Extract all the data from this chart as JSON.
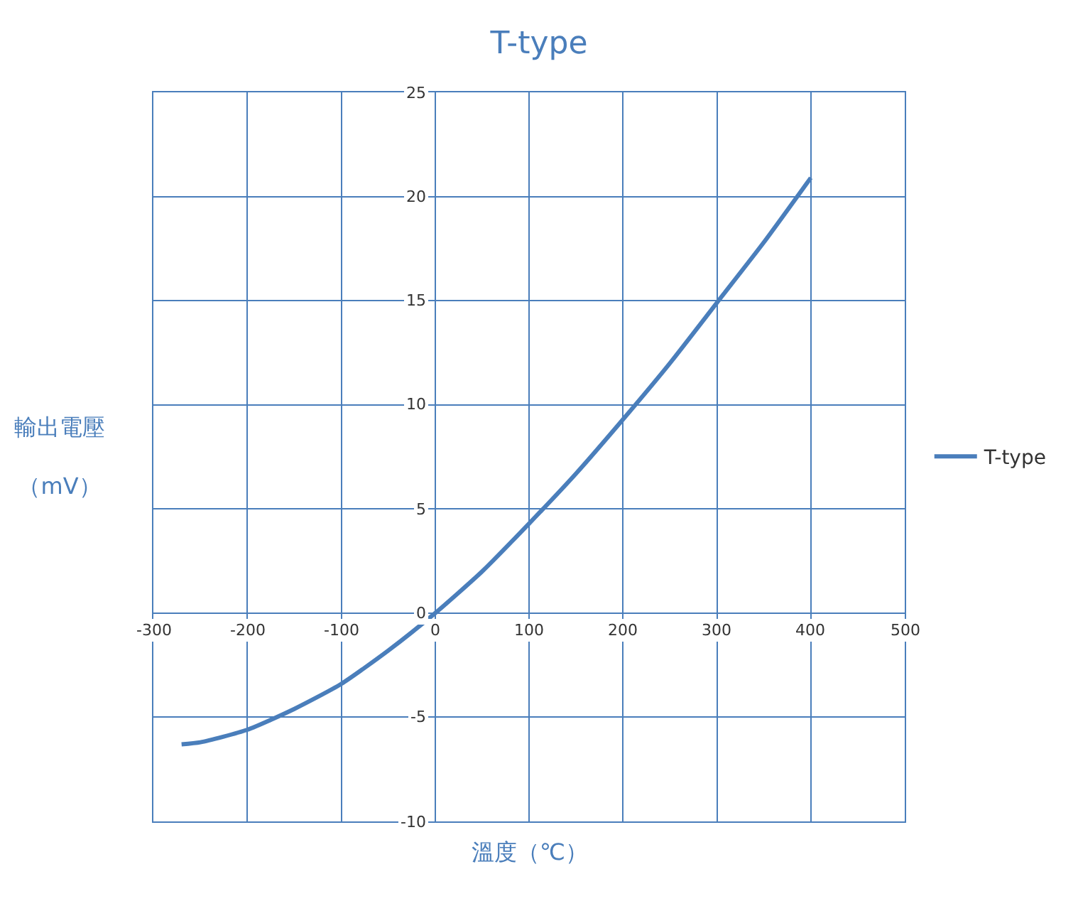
{
  "chart_data": {
    "type": "line",
    "title": "T-type",
    "xlabel": "溫度（℃）",
    "ylabel": "輸出電壓（mV）",
    "x": [
      -270,
      -250,
      -200,
      -150,
      -100,
      -50,
      0,
      50,
      100,
      150,
      200,
      250,
      300,
      350,
      400
    ],
    "series": [
      {
        "name": "T-type",
        "color": "#4a7ebb",
        "values": [
          -6.3,
          -6.2,
          -5.6,
          -4.6,
          -3.4,
          -1.8,
          0,
          2,
          4.3,
          6.7,
          9.3,
          12,
          14.9,
          17.8,
          20.9
        ]
      }
    ],
    "xlim": [
      -300,
      500
    ],
    "xticks": [
      -300,
      -200,
      -100,
      0,
      100,
      200,
      300,
      400,
      500
    ],
    "ylim": [
      -10,
      25
    ],
    "yticks": [
      -10,
      -5,
      0,
      5,
      10,
      15,
      20,
      25
    ],
    "grid": true,
    "legend": "right",
    "marker": "none",
    "line_style": "solid"
  }
}
